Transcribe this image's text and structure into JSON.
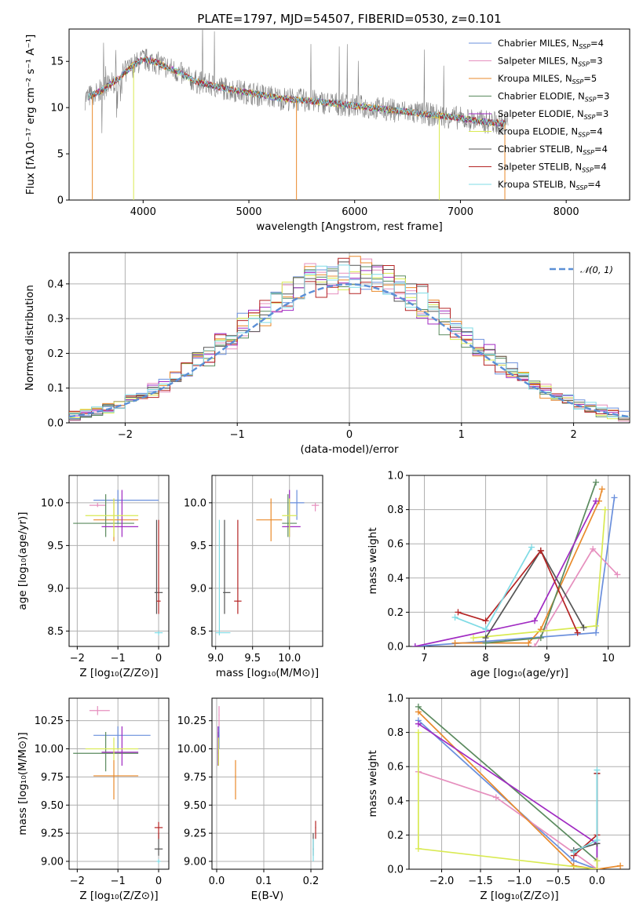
{
  "colors": {
    "chabrier_miles": "#6a8fdc",
    "salpeter_miles": "#e68fbe",
    "kroupa_miles": "#e98a2b",
    "chabrier_elodie": "#5a8a5e",
    "salpeter_elodie": "#a02ac2",
    "kroupa_elodie": "#d9ea52",
    "chabrier_stelib": "#555555",
    "salpeter_stelib": "#b52424",
    "kroupa_stelib": "#7fdbe5",
    "grid": "#b0b0b0",
    "normal": "#5b8fd6"
  },
  "chart_data": [
    {
      "id": "spectrum",
      "type": "line",
      "title": "PLATE=1797, MJD=54507, FIBERID=0530, z=0.101",
      "xlabel": "wavelength [Angstrom, rest frame]",
      "ylabel": "Flux [fλ10⁻¹⁷ erg cm⁻² s⁻¹ A⁻¹]",
      "xlim": [
        3300,
        8600
      ],
      "ylim": [
        0,
        18.5
      ],
      "xticks": [
        4000,
        5000,
        6000,
        7000,
        8000
      ],
      "yticks": [
        0,
        5,
        10,
        15
      ],
      "grid": false,
      "legend_position": "top-right",
      "continuum": {
        "x": [
          3450,
          3600,
          3750,
          3900,
          4000,
          4100,
          4300,
          4500,
          4800,
          5000,
          5300,
          5600,
          6000,
          6300,
          6600,
          6900,
          7200,
          7400
        ],
        "y": [
          11.0,
          11.8,
          13.0,
          14.5,
          15.2,
          15.0,
          14.0,
          12.8,
          12.0,
          11.6,
          11.0,
          10.7,
          10.2,
          9.8,
          9.4,
          9.0,
          8.5,
          8.3
        ]
      },
      "legend": [
        {
          "label": "Chabrier MILES, N",
          "sub": "SSP",
          "count": "=4",
          "color_key": "chabrier_miles"
        },
        {
          "label": "Salpeter MILES, N",
          "sub": "SSP",
          "count": "=3",
          "color_key": "salpeter_miles"
        },
        {
          "label": "Kroupa MILES, N",
          "sub": "SSP",
          "count": "=5",
          "color_key": "kroupa_miles"
        },
        {
          "label": "Chabrier ELODIE, N",
          "sub": "SSP",
          "count": "=3",
          "color_key": "chabrier_elodie"
        },
        {
          "label": "Salpeter ELODIE, N",
          "sub": "SSP",
          "count": "=3",
          "color_key": "salpeter_elodie"
        },
        {
          "label": "Kroupa ELODIE, N",
          "sub": "SSP",
          "count": "=4",
          "color_key": "kroupa_elodie"
        },
        {
          "label": "Chabrier STELIB, N",
          "sub": "SSP",
          "count": "=4",
          "color_key": "chabrier_stelib"
        },
        {
          "label": "Salpeter STELIB, N",
          "sub": "SSP",
          "count": "=4",
          "color_key": "salpeter_stelib"
        },
        {
          "label": "Kroupa STELIB, N",
          "sub": "SSP",
          "count": "=4",
          "color_key": "kroupa_stelib"
        }
      ]
    },
    {
      "id": "residuals",
      "type": "line",
      "xlabel": "(data-model)/error",
      "ylabel": "Normed distribution",
      "xlim": [
        -2.5,
        2.5
      ],
      "ylim": [
        0,
        0.49
      ],
      "xticks": [
        -2,
        -1,
        0,
        1,
        2
      ],
      "yticks": [
        0.0,
        0.1,
        0.2,
        0.3,
        0.4
      ],
      "grid": true,
      "legend_position": "top-right",
      "normal_label": "𝒩(0, 1)",
      "bin_width": 0.1
    },
    {
      "id": "age_vs_Z",
      "type": "scatter",
      "xlabel": "Z [log₁₀(Z/Z⊙)]",
      "ylabel": "age  [log₁₀(age/yr)]",
      "xlim": [
        -2.2,
        0.25
      ],
      "ylim": [
        8.32,
        10.32
      ],
      "xticks": [
        -2,
        -1,
        0
      ],
      "yticks": [
        8.5,
        9.0,
        9.5,
        10.0
      ],
      "grid": true,
      "points": [
        {
          "c": "chabrier_miles",
          "x": -1.0,
          "y": 10.03,
          "xe": [
            -1.6,
            0.0
          ],
          "ye": [
            9.75,
            10.15
          ]
        },
        {
          "c": "salpeter_miles",
          "x": -1.5,
          "y": 9.97,
          "xe": [
            -1.7,
            -1.3
          ],
          "ye": [
            9.95,
            10.0
          ]
        },
        {
          "c": "kroupa_miles",
          "x": -1.1,
          "y": 9.8,
          "xe": [
            -1.6,
            -0.5
          ],
          "ye": [
            9.55,
            10.05
          ]
        },
        {
          "c": "chabrier_elodie",
          "x": -1.3,
          "y": 9.76,
          "xe": [
            -2.1,
            -0.6
          ],
          "ye": [
            9.6,
            10.1
          ]
        },
        {
          "c": "salpeter_elodie",
          "x": -0.9,
          "y": 9.72,
          "xe": [
            -1.4,
            -0.5
          ],
          "ye": [
            9.6,
            10.15
          ]
        },
        {
          "c": "kroupa_elodie",
          "x": -1.1,
          "y": 9.85,
          "xe": [
            -1.8,
            -0.5
          ],
          "ye": [
            9.6,
            10.05
          ]
        },
        {
          "c": "chabrier_stelib",
          "x": -0.05,
          "y": 8.95,
          "xe": [
            -0.1,
            0.1
          ],
          "ye": [
            8.7,
            9.8
          ]
        },
        {
          "c": "salpeter_stelib",
          "x": 0.0,
          "y": 8.85,
          "xe": [
            -0.05,
            0.05
          ],
          "ye": [
            8.7,
            9.8
          ]
        },
        {
          "c": "kroupa_stelib",
          "x": 0.0,
          "y": 8.48,
          "xe": [
            -0.1,
            0.1
          ],
          "ye": [
            8.45,
            8.5
          ]
        }
      ]
    },
    {
      "id": "age_vs_mass",
      "type": "scatter",
      "xlabel": "mass [log₁₀(M/M⊙)]",
      "ylabel": "",
      "xlim": [
        8.95,
        10.45
      ],
      "ylim": [
        8.32,
        10.32
      ],
      "xticks": [
        9.0,
        9.5,
        10.0
      ],
      "yticks": [
        8.5,
        9.0,
        9.5,
        10.0
      ],
      "grid": true,
      "points": [
        {
          "c": "chabrier_miles",
          "x": 10.1,
          "y": 10.0,
          "xe": [
            10.0,
            10.2
          ],
          "ye": [
            9.8,
            10.15
          ]
        },
        {
          "c": "salpeter_miles",
          "x": 10.35,
          "y": 9.97,
          "xe": [
            10.3,
            10.4
          ],
          "ye": [
            9.9,
            10.0
          ]
        },
        {
          "c": "kroupa_miles",
          "x": 9.75,
          "y": 9.8,
          "xe": [
            9.55,
            9.9
          ],
          "ye": [
            9.55,
            10.05
          ]
        },
        {
          "c": "chabrier_elodie",
          "x": 9.98,
          "y": 9.76,
          "xe": [
            9.9,
            10.1
          ],
          "ye": [
            9.6,
            10.1
          ]
        },
        {
          "c": "salpeter_elodie",
          "x": 10.0,
          "y": 9.72,
          "xe": [
            9.9,
            10.15
          ],
          "ye": [
            9.6,
            10.15
          ]
        },
        {
          "c": "kroupa_elodie",
          "x": 10.0,
          "y": 9.85,
          "xe": [
            9.9,
            10.1
          ],
          "ye": [
            9.6,
            10.05
          ]
        },
        {
          "c": "chabrier_stelib",
          "x": 9.12,
          "y": 8.95,
          "xe": [
            9.1,
            9.2
          ],
          "ye": [
            8.7,
            9.8
          ]
        },
        {
          "c": "salpeter_stelib",
          "x": 9.3,
          "y": 8.85,
          "xe": [
            9.25,
            9.35
          ],
          "ye": [
            8.7,
            9.8
          ]
        },
        {
          "c": "kroupa_stelib",
          "x": 9.05,
          "y": 8.48,
          "xe": [
            9.0,
            9.2
          ],
          "ye": [
            8.45,
            9.8
          ]
        }
      ]
    },
    {
      "id": "weight_vs_age",
      "type": "line",
      "xlabel": "age  [log₁₀(age/yr)]",
      "ylabel": "mass weight",
      "xlim": [
        6.75,
        10.35
      ],
      "ylim": [
        0,
        1.0
      ],
      "xticks": [
        7,
        8,
        9,
        10
      ],
      "yticks": [
        0.0,
        0.2,
        0.4,
        0.6,
        0.8,
        1.0
      ],
      "grid": true,
      "series": [
        {
          "c": "chabrier_miles",
          "x": [
            6.85,
            8.0,
            9.8,
            10.1
          ],
          "y": [
            0.0,
            0.03,
            0.08,
            0.87
          ]
        },
        {
          "c": "salpeter_miles",
          "x": [
            8.8,
            9.75,
            10.15
          ],
          "y": [
            0.0,
            0.57,
            0.42
          ]
        },
        {
          "c": "kroupa_miles",
          "x": [
            7.5,
            8.7,
            8.9,
            9.85,
            9.9
          ],
          "y": [
            0.02,
            0.02,
            0.1,
            0.85,
            0.92
          ]
        },
        {
          "c": "chabrier_elodie",
          "x": [
            8.0,
            8.9,
            9.8
          ],
          "y": [
            0.02,
            0.05,
            0.96
          ]
        },
        {
          "c": "salpeter_elodie",
          "x": [
            6.85,
            8.8,
            9.8
          ],
          "y": [
            0.0,
            0.15,
            0.85
          ]
        },
        {
          "c": "kroupa_elodie",
          "x": [
            7.8,
            9.8,
            9.95
          ],
          "y": [
            0.05,
            0.12,
            0.8
          ]
        },
        {
          "c": "chabrier_stelib",
          "x": [
            8.0,
            8.9,
            9.6
          ],
          "y": [
            0.05,
            0.56,
            0.11
          ]
        },
        {
          "c": "salpeter_stelib",
          "x": [
            7.55,
            8.0,
            8.9,
            9.5
          ],
          "y": [
            0.2,
            0.15,
            0.56,
            0.08
          ]
        },
        {
          "c": "kroupa_stelib",
          "x": [
            7.5,
            8.0,
            8.75
          ],
          "y": [
            0.17,
            0.1,
            0.58
          ]
        }
      ]
    },
    {
      "id": "mass_vs_Z",
      "type": "scatter",
      "xlabel": "Z [log₁₀(Z/Z⊙)]",
      "ylabel": "mass [log₁₀(M/M⊙)]",
      "xlim": [
        -2.2,
        0.25
      ],
      "ylim": [
        8.93,
        10.45
      ],
      "xticks": [
        -2,
        -1,
        0
      ],
      "yticks": [
        9.0,
        9.25,
        9.5,
        9.75,
        10.0,
        10.25
      ],
      "grid": true,
      "points": [
        {
          "c": "chabrier_miles",
          "x": -1.0,
          "y": 10.12,
          "xe": [
            -1.6,
            -0.2
          ],
          "ye": [
            10.0,
            10.2
          ]
        },
        {
          "c": "salpeter_miles",
          "x": -1.5,
          "y": 10.34,
          "xe": [
            -1.7,
            -1.2
          ],
          "ye": [
            10.3,
            10.38
          ]
        },
        {
          "c": "kroupa_miles",
          "x": -1.1,
          "y": 9.76,
          "xe": [
            -1.6,
            -0.5
          ],
          "ye": [
            9.55,
            9.9
          ]
        },
        {
          "c": "chabrier_elodie",
          "x": -1.3,
          "y": 9.96,
          "xe": [
            -2.1,
            -0.5
          ],
          "ye": [
            9.8,
            10.15
          ]
        },
        {
          "c": "salpeter_elodie",
          "x": -0.9,
          "y": 9.97,
          "xe": [
            -1.4,
            -0.5
          ],
          "ye": [
            9.85,
            10.2
          ]
        },
        {
          "c": "kroupa_elodie",
          "x": -1.1,
          "y": 10.0,
          "xe": [
            -1.8,
            -0.5
          ],
          "ye": [
            9.9,
            10.1
          ]
        },
        {
          "c": "chabrier_stelib",
          "x": 0.0,
          "y": 9.11,
          "xe": [
            -0.1,
            0.1
          ],
          "ye": [
            9.05,
            9.25
          ]
        },
        {
          "c": "salpeter_stelib",
          "x": 0.0,
          "y": 9.3,
          "xe": [
            -0.1,
            0.1
          ],
          "ye": [
            9.2,
            9.35
          ]
        },
        {
          "c": "kroupa_stelib",
          "x": 0.0,
          "y": 9.0,
          "xe": [
            -0.05,
            0.05
          ],
          "ye": [
            8.98,
            9.02
          ]
        }
      ]
    },
    {
      "id": "mass_vs_EBV",
      "type": "scatter",
      "xlabel": "E(B-V)",
      "ylabel": "",
      "xlim": [
        -0.01,
        0.225
      ],
      "ylim": [
        8.93,
        10.45
      ],
      "xticks": [
        0.0,
        0.1,
        0.2
      ],
      "yticks": [
        9.0,
        9.25,
        9.5,
        9.75,
        10.0,
        10.25
      ],
      "grid": true,
      "points": [
        {
          "c": "chabrier_miles",
          "x": 0.005,
          "y": 10.12,
          "xe": [
            0.004,
            0.006
          ],
          "ye": [
            10.0,
            10.2
          ]
        },
        {
          "c": "salpeter_miles",
          "x": 0.005,
          "y": 10.3,
          "xe": [
            0.004,
            0.006
          ],
          "ye": [
            10.2,
            10.38
          ]
        },
        {
          "c": "kroupa_miles",
          "x": 0.04,
          "y": 9.76,
          "xe": [
            0.039,
            0.041
          ],
          "ye": [
            9.55,
            9.9
          ]
        },
        {
          "c": "chabrier_elodie",
          "x": 0.003,
          "y": 9.96,
          "xe": [
            0.002,
            0.004
          ],
          "ye": [
            9.85,
            10.15
          ]
        },
        {
          "c": "salpeter_elodie",
          "x": 0.003,
          "y": 9.97,
          "xe": [
            0.002,
            0.004
          ],
          "ye": [
            9.85,
            10.2
          ]
        },
        {
          "c": "kroupa_elodie",
          "x": 0.004,
          "y": 10.0,
          "xe": [
            0.003,
            0.005
          ],
          "ye": [
            9.85,
            10.1
          ]
        },
        {
          "c": "chabrier_stelib",
          "x": 0.205,
          "y": 9.11,
          "xe": [
            0.204,
            0.206
          ],
          "ye": [
            9.05,
            9.25
          ]
        },
        {
          "c": "salpeter_stelib",
          "x": 0.21,
          "y": 9.3,
          "xe": [
            0.209,
            0.211
          ],
          "ye": [
            9.2,
            9.36
          ]
        },
        {
          "c": "kroupa_stelib",
          "x": 0.205,
          "y": 9.1,
          "xe": [
            0.204,
            0.206
          ],
          "ye": [
            9.0,
            9.2
          ]
        }
      ]
    },
    {
      "id": "weight_vs_Z",
      "type": "line",
      "xlabel": "Z [log₁₀(Z/Z⊙)]",
      "ylabel": "mass weight",
      "xlim": [
        -2.42,
        0.42
      ],
      "ylim": [
        0,
        1.0
      ],
      "xticks": [
        -2.0,
        -1.5,
        -1.0,
        -0.5,
        0.0
      ],
      "yticks": [
        0.0,
        0.2,
        0.4,
        0.6,
        0.8,
        1.0
      ],
      "grid": true,
      "series": [
        {
          "c": "chabrier_miles",
          "x": [
            -2.3,
            -0.3,
            0.0,
            0.0
          ],
          "y": [
            0.87,
            0.05,
            0.0,
            0.15
          ]
        },
        {
          "c": "salpeter_miles",
          "x": [
            -2.3,
            -1.3,
            0.0
          ],
          "y": [
            0.57,
            0.42,
            0.0
          ]
        },
        {
          "c": "kroupa_miles",
          "x": [
            -2.3,
            -0.3,
            0.0,
            0.3
          ],
          "y": [
            0.92,
            0.02,
            0.0,
            0.02
          ]
        },
        {
          "c": "chabrier_elodie",
          "x": [
            -2.3,
            0.0,
            0.0
          ],
          "y": [
            0.95,
            0.05,
            0.0
          ]
        },
        {
          "c": "salpeter_elodie",
          "x": [
            -2.3,
            0.0,
            0.0
          ],
          "y": [
            0.85,
            0.15,
            0.0
          ]
        },
        {
          "c": "kroupa_elodie",
          "x": [
            -2.3,
            -2.3,
            0.0,
            0.0
          ],
          "y": [
            0.8,
            0.12,
            0.0,
            0.05
          ]
        },
        {
          "c": "chabrier_stelib",
          "x": [
            -0.3,
            0.0,
            0.0
          ],
          "y": [
            0.11,
            0.15,
            0.56
          ]
        },
        {
          "c": "salpeter_stelib",
          "x": [
            -0.3,
            0.0,
            0.0
          ],
          "y": [
            0.08,
            0.2,
            0.56
          ]
        },
        {
          "c": "kroupa_stelib",
          "x": [
            -0.3,
            0.0,
            0.0
          ],
          "y": [
            0.1,
            0.17,
            0.58
          ]
        }
      ]
    }
  ]
}
